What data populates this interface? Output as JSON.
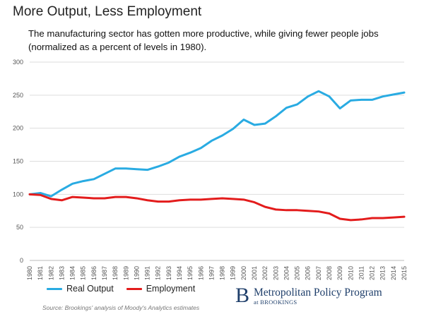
{
  "header": {
    "title": "More Output, Less Employment",
    "subtitle": "The manufacturing sector has gotten more productive, while giving fewer people jobs (normalized as a percent of levels in 1980)."
  },
  "footer": {
    "source": "Source: Brookings' analysis of Moody's Analytics estimates",
    "logo_mark": "B",
    "logo_name": "Metropolitan Policy Program",
    "logo_sub": "at BROOKINGS"
  },
  "chart_data": {
    "type": "line",
    "title": "More Output, Less Employment",
    "xlabel": "",
    "ylabel": "",
    "ylim": [
      0,
      300
    ],
    "yticks": [
      0,
      50,
      100,
      150,
      200,
      250,
      300
    ],
    "grid": true,
    "legend_position": "bottom-left",
    "categories": [
      "1980",
      "1981",
      "1982",
      "1983",
      "1984",
      "1985",
      "1986",
      "1987",
      "1988",
      "1989",
      "1990",
      "1991",
      "1992",
      "1993",
      "1994",
      "1995",
      "1996",
      "1997",
      "1998",
      "1999",
      "2000",
      "2001",
      "2002",
      "2003",
      "2004",
      "2005",
      "2006",
      "2007",
      "2008",
      "2009",
      "2010",
      "2011",
      "2012",
      "2013",
      "2014",
      "2015"
    ],
    "series": [
      {
        "name": "Real Output",
        "color": "#29abe2",
        "values": [
          100,
          102,
          97,
          107,
          116,
          120,
          123,
          131,
          139,
          139,
          138,
          137,
          142,
          148,
          157,
          163,
          170,
          181,
          189,
          199,
          213,
          205,
          207,
          218,
          231,
          236,
          248,
          256,
          248,
          230,
          242,
          243,
          243,
          248,
          251,
          254
        ]
      },
      {
        "name": "Employment",
        "color": "#e31c1c",
        "values": [
          100,
          99,
          93,
          91,
          96,
          95,
          94,
          94,
          96,
          96,
          94,
          91,
          89,
          89,
          91,
          92,
          92,
          93,
          94,
          93,
          92,
          88,
          81,
          77,
          76,
          76,
          75,
          74,
          71,
          63,
          61,
          62,
          64,
          64,
          65,
          66
        ]
      }
    ]
  }
}
